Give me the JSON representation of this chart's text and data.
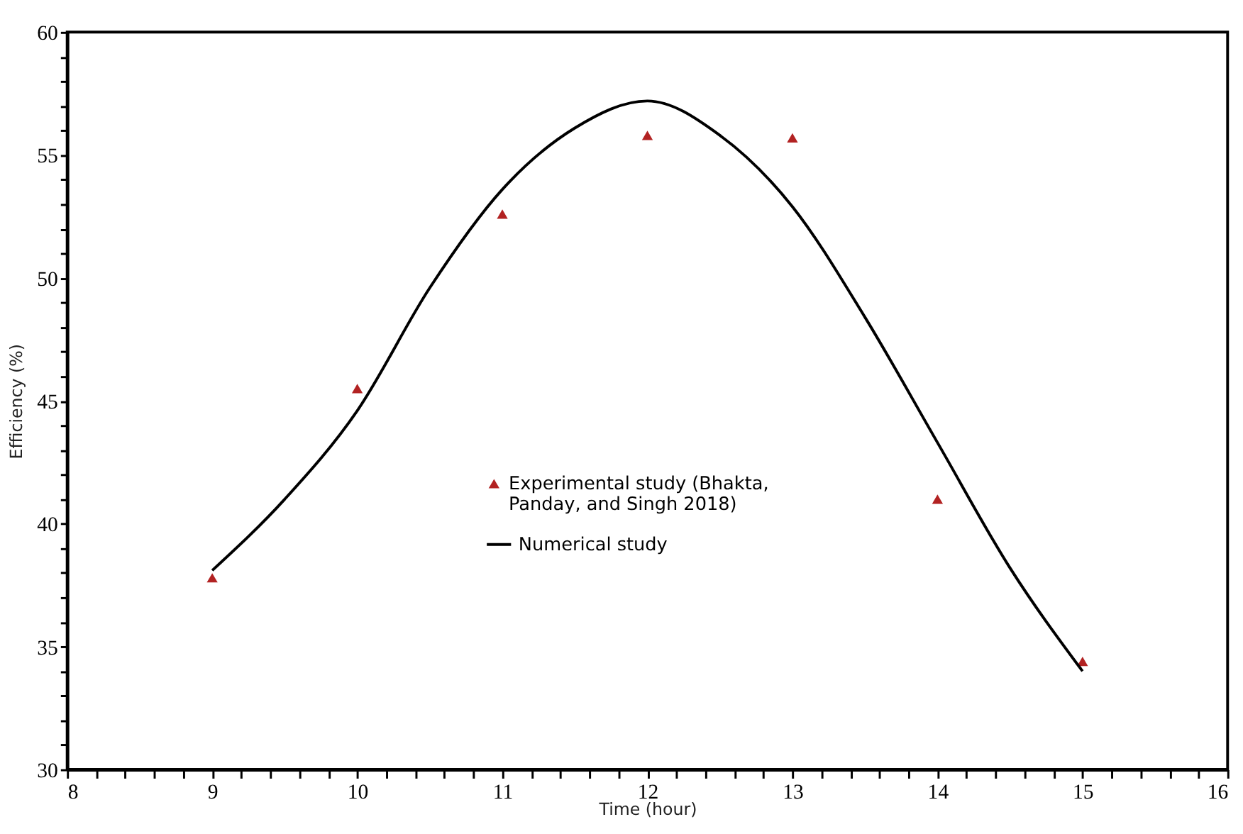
{
  "chart_data": {
    "type": "scatter",
    "xlabel": "Time (hour)",
    "ylabel": "Efficiency (%)",
    "xlim": [
      8,
      16
    ],
    "ylim": [
      30,
      60
    ],
    "xticks": [
      8,
      {
        "value": 8.2,
        "label": null
      },
      {
        "value": 8.4,
        "label": null
      },
      {
        "value": 8.6,
        "label": null
      },
      {
        "value": 8.8,
        "label": null
      },
      9,
      {
        "value": 9.2,
        "label": null
      },
      {
        "value": 9.4,
        "label": null
      },
      {
        "value": 9.6,
        "label": null
      },
      {
        "value": 9.8,
        "label": null
      },
      10,
      {
        "value": 10.2,
        "label": null
      },
      {
        "value": 10.4,
        "label": null
      },
      {
        "value": 10.6,
        "label": null
      },
      {
        "value": 10.8,
        "label": null
      },
      11,
      {
        "value": 11.2,
        "label": null
      },
      {
        "value": 11.4,
        "label": null
      },
      {
        "value": 11.6,
        "label": null
      },
      {
        "value": 11.8,
        "label": null
      },
      12,
      {
        "value": 12.2,
        "label": null
      },
      {
        "value": 12.4,
        "label": null
      },
      {
        "value": 12.6,
        "label": null
      },
      {
        "value": 12.8,
        "label": null
      },
      13,
      {
        "value": 13.2,
        "label": null
      },
      {
        "value": 13.4,
        "label": null
      },
      {
        "value": 13.6,
        "label": null
      },
      {
        "value": 13.8,
        "label": null
      },
      14,
      {
        "value": 14.2,
        "label": null
      },
      {
        "value": 14.4,
        "label": null
      },
      {
        "value": 14.6,
        "label": null
      },
      {
        "value": 14.8,
        "label": null
      },
      15,
      {
        "value": 15.2,
        "label": null
      },
      {
        "value": 15.4,
        "label": null
      },
      {
        "value": 15.6,
        "label": null
      },
      {
        "value": 15.8,
        "label": null
      },
      16
    ],
    "yticks": [
      30,
      {
        "value": 31,
        "label": null
      },
      {
        "value": 32,
        "label": null
      },
      {
        "value": 33,
        "label": null
      },
      {
        "value": 34,
        "label": null
      },
      35,
      {
        "value": 36,
        "label": null
      },
      {
        "value": 37,
        "label": null
      },
      {
        "value": 38,
        "label": null
      },
      {
        "value": 39,
        "label": null
      },
      40,
      {
        "value": 41,
        "label": null
      },
      {
        "value": 42,
        "label": null
      },
      {
        "value": 43,
        "label": null
      },
      {
        "value": 44,
        "label": null
      },
      45,
      {
        "value": 46,
        "label": null
      },
      {
        "value": 47,
        "label": null
      },
      {
        "value": 48,
        "label": null
      },
      {
        "value": 49,
        "label": null
      },
      50,
      {
        "value": 51,
        "label": null
      },
      {
        "value": 52,
        "label": null
      },
      {
        "value": 53,
        "label": null
      },
      {
        "value": 54,
        "label": null
      },
      55,
      {
        "value": 56,
        "label": null
      },
      {
        "value": 57,
        "label": null
      },
      {
        "value": 58,
        "label": null
      },
      {
        "value": 59,
        "label": null
      },
      60
    ],
    "grid": false,
    "legend": "center",
    "series": [
      {
        "name": "Experimental study (Bhakta, Panday, and Singh 2018)",
        "type": "scatter",
        "marker": "triangle",
        "color": "#b22222",
        "x": [
          9,
          10,
          11,
          12,
          13,
          14,
          15
        ],
        "values": [
          37.8,
          45.5,
          52.6,
          55.8,
          55.7,
          41.0,
          34.4
        ]
      },
      {
        "name": "Numerical study",
        "type": "line",
        "marker": "none",
        "line_style": "solid",
        "color": "#000000",
        "x": [
          9,
          9.5,
          10,
          10.5,
          11,
          11.5,
          12,
          12.5,
          13,
          13.5,
          14,
          14.5,
          15
        ],
        "values": [
          38.1,
          41.0,
          44.6,
          49.6,
          53.6,
          56.1,
          57.2,
          55.8,
          52.9,
          48.4,
          43.3,
          38.2,
          34.0
        ]
      }
    ]
  }
}
